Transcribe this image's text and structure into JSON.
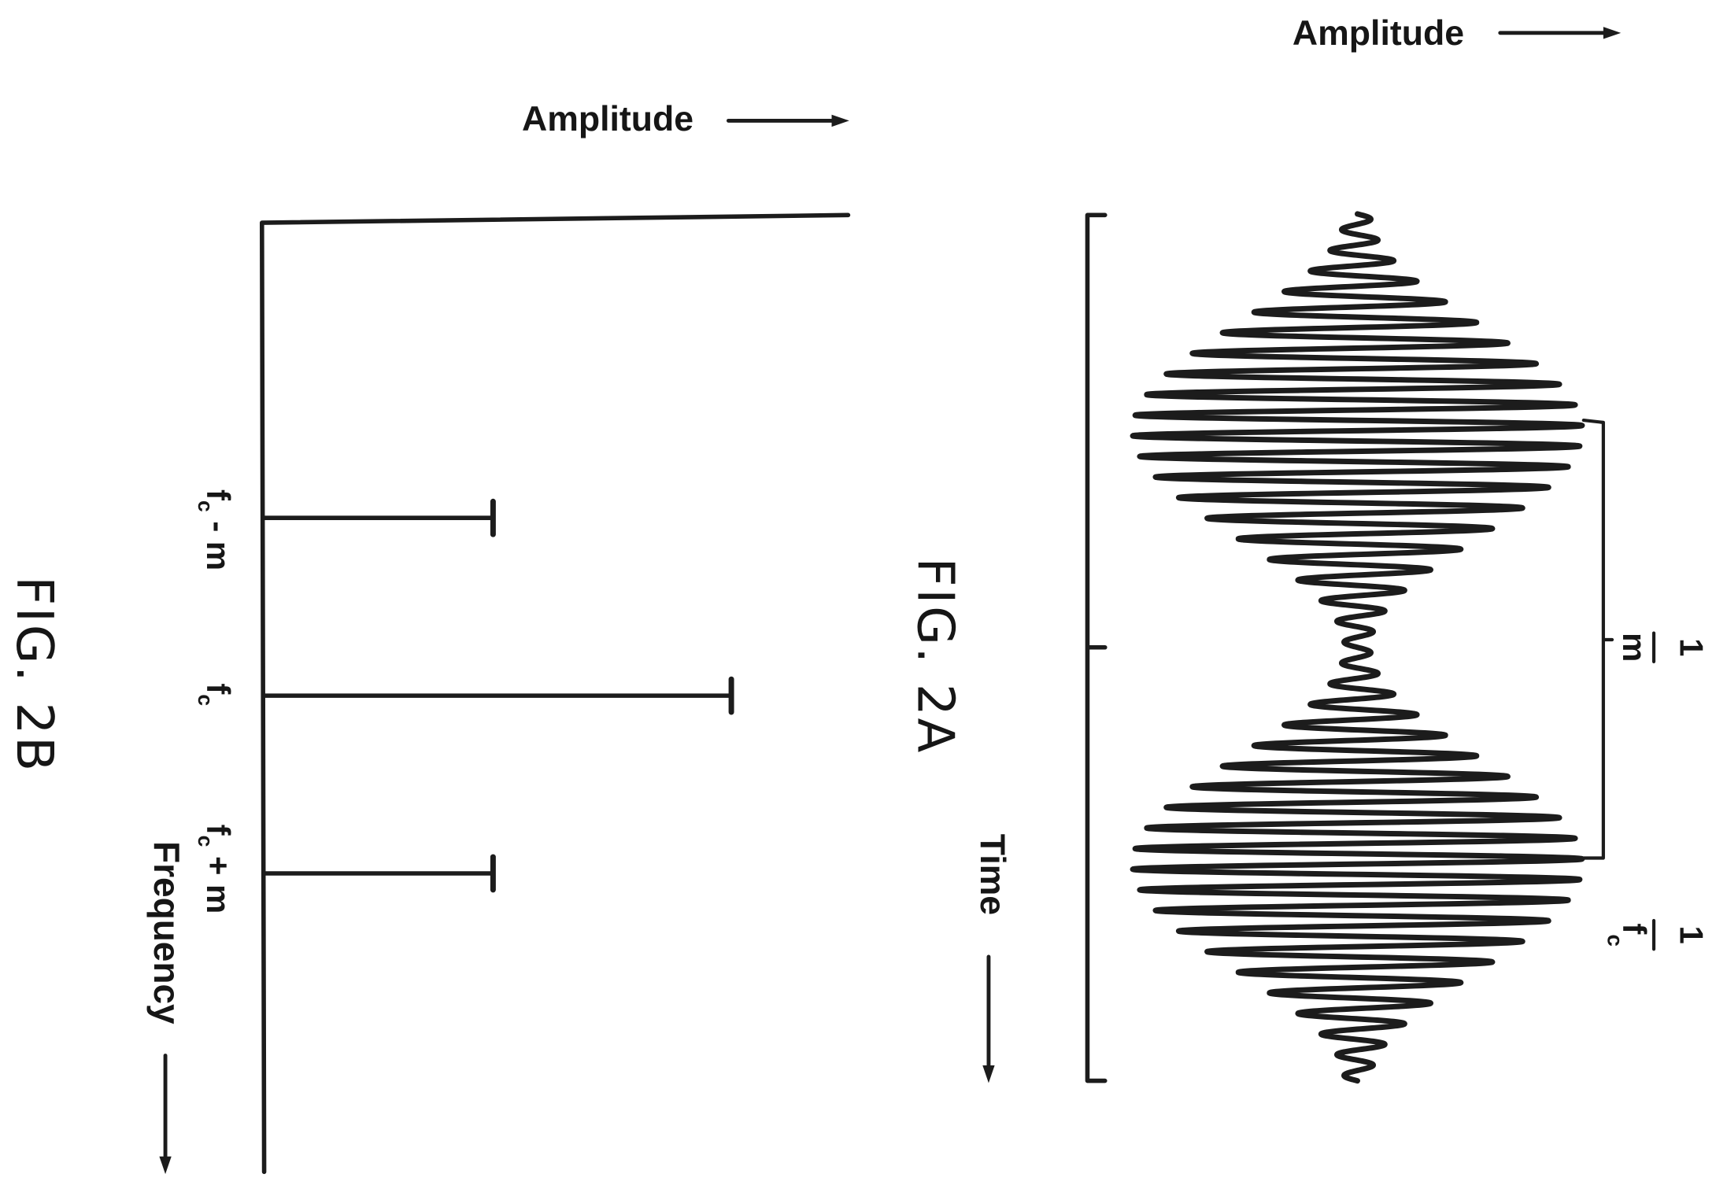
{
  "chart_data": [
    {
      "type": "line",
      "title": "FIG. 2A",
      "xlabel": "Time",
      "ylabel": "Amplitude",
      "modulation_index": 0.89,
      "carrier_cycles_per_modulation_period": 21,
      "modulation_periods_shown": 2,
      "annotations": [
        {
          "numerator": "1",
          "denominator": "m"
        },
        {
          "numerator": "1",
          "denominator": "f",
          "denominator_subscript": "c"
        }
      ]
    },
    {
      "type": "bar",
      "title": "FIG. 2B",
      "xlabel": "Frequency",
      "ylabel": "Amplitude",
      "categories": [
        {
          "base": "f",
          "sub": "c",
          "suffix": " - m"
        },
        {
          "base": "f",
          "sub": "c",
          "suffix": ""
        },
        {
          "base": "f",
          "sub": "c",
          "suffix": " + m"
        }
      ],
      "values": [
        0.49,
        1.0,
        0.49
      ],
      "ylim": [
        0,
        1.25
      ]
    }
  ]
}
